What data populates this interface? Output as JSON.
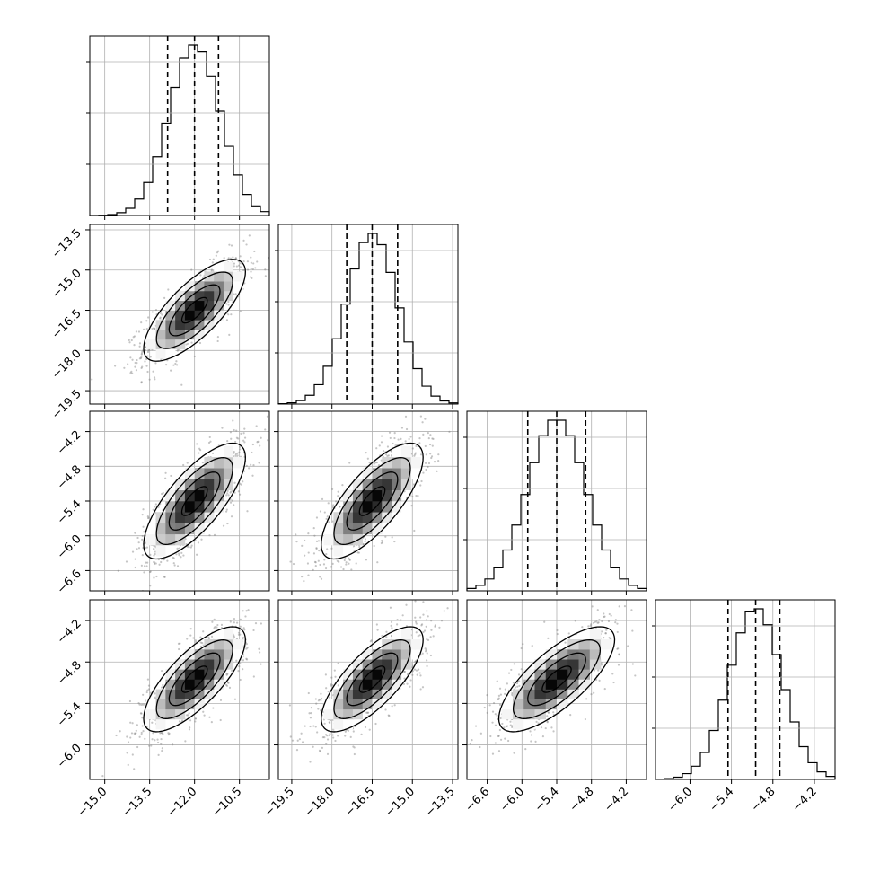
{
  "chart_data": {
    "type": "corner",
    "n_params": 4,
    "params": [
      {
        "range": [
          -15.5,
          -9.5
        ],
        "ticks": [
          -15.0,
          -13.5,
          -12.0,
          -10.5
        ],
        "tick_labels": [
          "−15.0",
          "−13.5",
          "−12.0",
          "−10.5"
        ],
        "median": -12.0,
        "q16": -12.9,
        "q84": -11.2,
        "sigma": 0.85
      },
      {
        "range": [
          -20.0,
          -13.3
        ],
        "ticks": [
          -19.5,
          -18.0,
          -16.5,
          -15.0,
          -13.5
        ],
        "tick_labels": [
          "−19.5",
          "−18.0",
          "−16.5",
          "−15.0",
          "−13.5"
        ],
        "median": -16.5,
        "q16": -17.45,
        "q84": -15.55,
        "sigma": 0.95
      },
      {
        "range": [
          -6.95,
          -3.85
        ],
        "ticks": [
          -6.6,
          -6.0,
          -5.4,
          -4.8,
          -4.2
        ],
        "tick_labels": [
          "−6.6",
          "−6.0",
          "−5.4",
          "−4.8",
          "−4.2"
        ],
        "median": -5.4,
        "q16": -5.9,
        "q84": -4.9,
        "sigma": 0.5
      },
      {
        "range": [
          -6.5,
          -3.9
        ],
        "ticks": [
          -6.0,
          -5.4,
          -4.8,
          -4.2
        ],
        "tick_labels": [
          "−6.0",
          "−5.4",
          "−4.8",
          "−4.2"
        ],
        "median": -5.05,
        "q16": -5.45,
        "q84": -4.7,
        "sigma": 0.38
      }
    ],
    "correlation": 0.75,
    "grid": true,
    "quantile_lines": "dashed",
    "colors": {
      "axes": "#000000",
      "grid": "#b0b0b0",
      "points": "#7f7f7f",
      "contour": "#000000"
    }
  }
}
